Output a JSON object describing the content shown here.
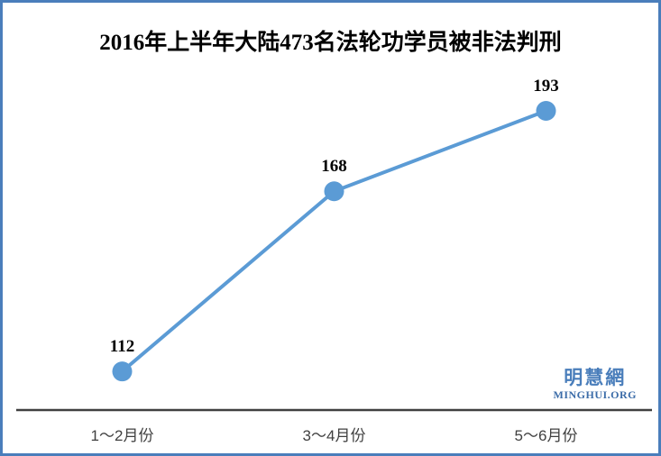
{
  "page": {
    "title": "2016年上半年大陆473名法轮功学员被非法判刑"
  },
  "chart_data": {
    "type": "line",
    "title": "2016年上半年大陆473名法轮功学员被非法判刑",
    "categories": [
      "1～2月份",
      "3～4月份",
      "5～6月份"
    ],
    "values": [
      112,
      168,
      193
    ],
    "data_labels": [
      "112",
      "168",
      "193"
    ],
    "xlabel": "",
    "ylabel": "",
    "ylim": [
      100,
      200
    ],
    "grid": "off",
    "legend": "none",
    "marker": "circle",
    "line_color": "#5B9BD5",
    "marker_color": "#5B9BD5",
    "axis_color": "#404040",
    "data_label_color": "#000000",
    "category_label_color": "#404040"
  },
  "watermark": {
    "site_name": "明慧網",
    "site_url_text": "MINGHUI.ORG",
    "color": "#4A7EBB"
  },
  "frame": {
    "border_color": "#4A7EBB",
    "background": "#ffffff"
  }
}
